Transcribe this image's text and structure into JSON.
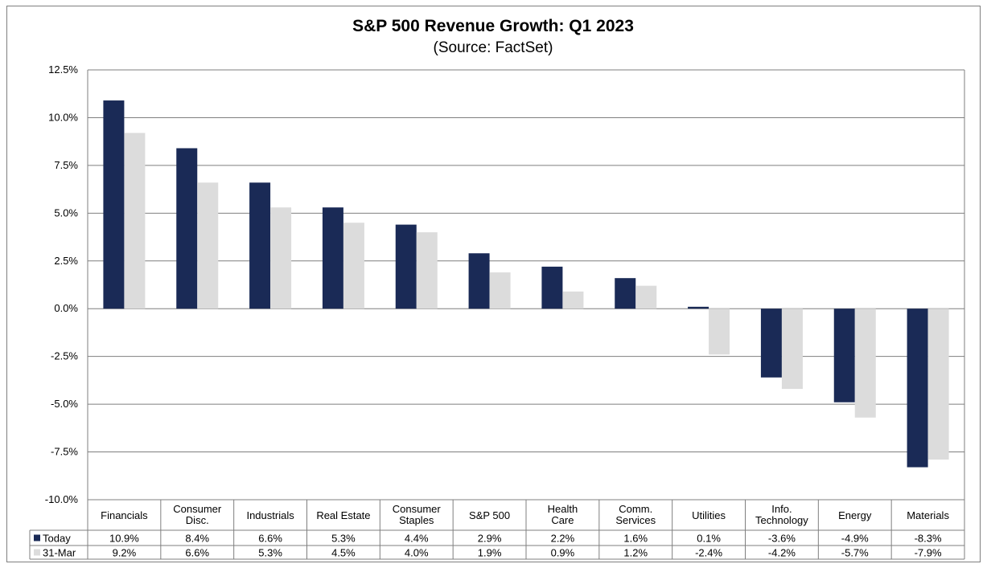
{
  "chart_data": {
    "type": "bar",
    "title": "S&P 500 Revenue Growth: Q1 2023",
    "subtitle": "(Source: FactSet)",
    "categories": [
      [
        "Financials"
      ],
      [
        "Consumer",
        "Disc."
      ],
      [
        "Industrials"
      ],
      [
        "Real Estate"
      ],
      [
        "Consumer",
        "Staples"
      ],
      [
        "S&P 500"
      ],
      [
        "Health",
        "Care"
      ],
      [
        "Comm.",
        "Services"
      ],
      [
        "Utilities"
      ],
      [
        "Info.",
        "Technology"
      ],
      [
        "Energy"
      ],
      [
        "Materials"
      ]
    ],
    "series": [
      {
        "name": "Today",
        "color": "#1a2a56",
        "values": [
          10.9,
          8.4,
          6.6,
          5.3,
          4.4,
          2.9,
          2.2,
          1.6,
          0.1,
          -3.6,
          -4.9,
          -8.3
        ],
        "labels": [
          "10.9%",
          "8.4%",
          "6.6%",
          "5.3%",
          "4.4%",
          "2.9%",
          "2.2%",
          "1.6%",
          "0.1%",
          "-3.6%",
          "-4.9%",
          "-8.3%"
        ]
      },
      {
        "name": "31-Mar",
        "color": "#dcdcdc",
        "values": [
          9.2,
          6.6,
          5.3,
          4.5,
          4.0,
          1.9,
          0.9,
          1.2,
          -2.4,
          -4.2,
          -5.7,
          -7.9
        ],
        "labels": [
          "9.2%",
          "6.6%",
          "5.3%",
          "4.5%",
          "4.0%",
          "1.9%",
          "0.9%",
          "1.2%",
          "-2.4%",
          "-4.2%",
          "-5.7%",
          "-7.9%"
        ]
      }
    ],
    "ylim": [
      -10.0,
      12.5
    ],
    "yticks": [
      12.5,
      10.0,
      7.5,
      5.0,
      2.5,
      0.0,
      -2.5,
      -5.0,
      -7.5,
      -10.0
    ],
    "ytick_labels": [
      "12.5%",
      "10.0%",
      "7.5%",
      "5.0%",
      "2.5%",
      "0.0%",
      "-2.5%",
      "-5.0%",
      "-7.5%",
      "-10.0%"
    ],
    "grid": true,
    "legend": "data-table"
  }
}
